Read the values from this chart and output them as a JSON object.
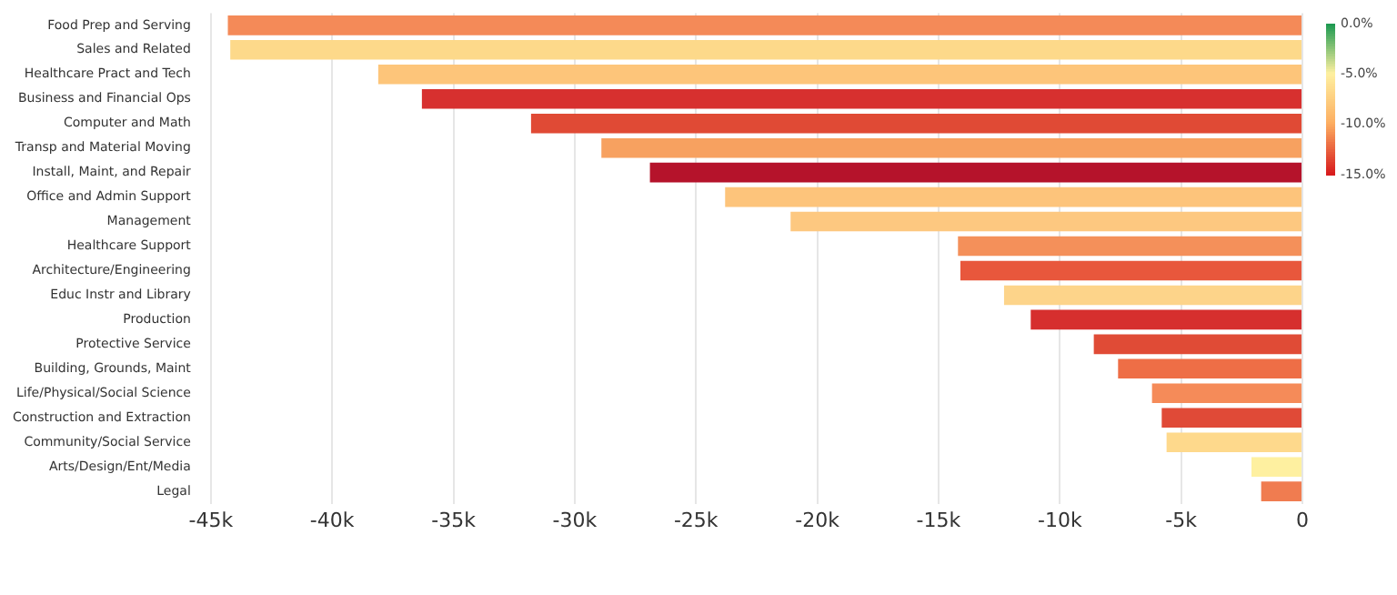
{
  "chart_data": {
    "type": "bar",
    "orientation": "horizontal",
    "categories": [
      "Food Prep and Serving",
      "Sales and Related",
      "Healthcare Pract and Tech",
      "Business and Financial Ops",
      "Computer and Math",
      "Transp and Material Moving",
      "Install, Maint, and Repair",
      "Office and Admin Support",
      "Management",
      "Healthcare Support",
      "Architecture/Engineering",
      "Educ Instr and Library",
      "Production",
      "Protective Service",
      "Building, Grounds, Maint",
      "Life/Physical/Social Science",
      "Construction and Extraction",
      "Community/Social Service",
      "Arts/Design/Ent/Media",
      "Legal"
    ],
    "values": [
      -44300,
      -44200,
      -38100,
      -36300,
      -31800,
      -28900,
      -26900,
      -23800,
      -21100,
      -14200,
      -14100,
      -12300,
      -11200,
      -8600,
      -7600,
      -6200,
      -5800,
      -5600,
      -2100,
      -1700
    ],
    "colors": [
      "#f48a58",
      "#fdd98a",
      "#fdc57a",
      "#d7302f",
      "#e04a35",
      "#f7a160",
      "#b5132b",
      "#fdc47b",
      "#fdc880",
      "#f4905a",
      "#e8573c",
      "#fdd48a",
      "#d62f2e",
      "#e04b36",
      "#ee6e46",
      "#f58b59",
      "#e04a37",
      "#fed98c",
      "#fef0a0",
      "#f07c50"
    ],
    "xlim": [
      -45000,
      0
    ],
    "xticks": [
      {
        "value": -45000,
        "label": "-45k"
      },
      {
        "value": -40000,
        "label": "-40k"
      },
      {
        "value": -35000,
        "label": "-35k"
      },
      {
        "value": -30000,
        "label": "-30k"
      },
      {
        "value": -25000,
        "label": "-25k"
      },
      {
        "value": -20000,
        "label": "-20k"
      },
      {
        "value": -15000,
        "label": "-15k"
      },
      {
        "value": -10000,
        "label": "-10k"
      },
      {
        "value": -5000,
        "label": "-5k"
      },
      {
        "value": 0,
        "label": "0"
      }
    ],
    "clim": [
      -15,
      0
    ],
    "cticks": [
      {
        "value": 0,
        "label": "0.0%"
      },
      {
        "value": -5,
        "label": "-5.0%"
      },
      {
        "value": -10,
        "label": "-10.0%"
      },
      {
        "value": -15,
        "label": "-15.0%"
      }
    ],
    "grid": "x",
    "legend": false
  }
}
